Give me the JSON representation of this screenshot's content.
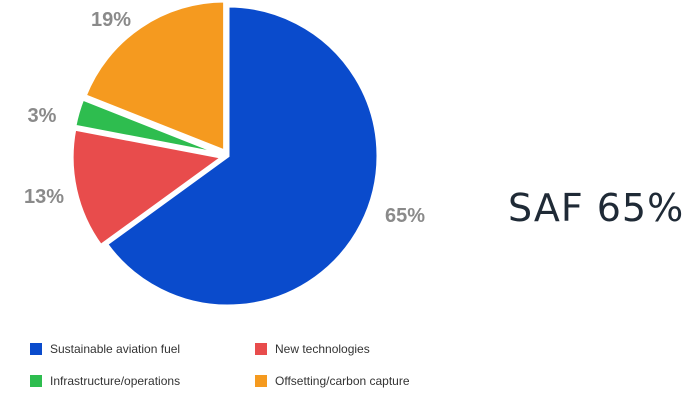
{
  "chart_data": {
    "type": "pie",
    "slices": [
      {
        "label": "Sustainable aviation fuel",
        "value": 65,
        "value_label": "65%",
        "color": "#0a4bcc"
      },
      {
        "label": "New technologies",
        "value": 13,
        "value_label": "13%",
        "color": "#e84c4c"
      },
      {
        "label": "Infrastructure/operations",
        "value": 3,
        "value_label": "3%",
        "color": "#2ebd4f"
      },
      {
        "label": "Offsetting/carbon capture",
        "value": 19,
        "value_label": "19%",
        "color": "#f59a1f"
      }
    ],
    "legend_position": "bottom",
    "callout": "SAF 65%"
  }
}
